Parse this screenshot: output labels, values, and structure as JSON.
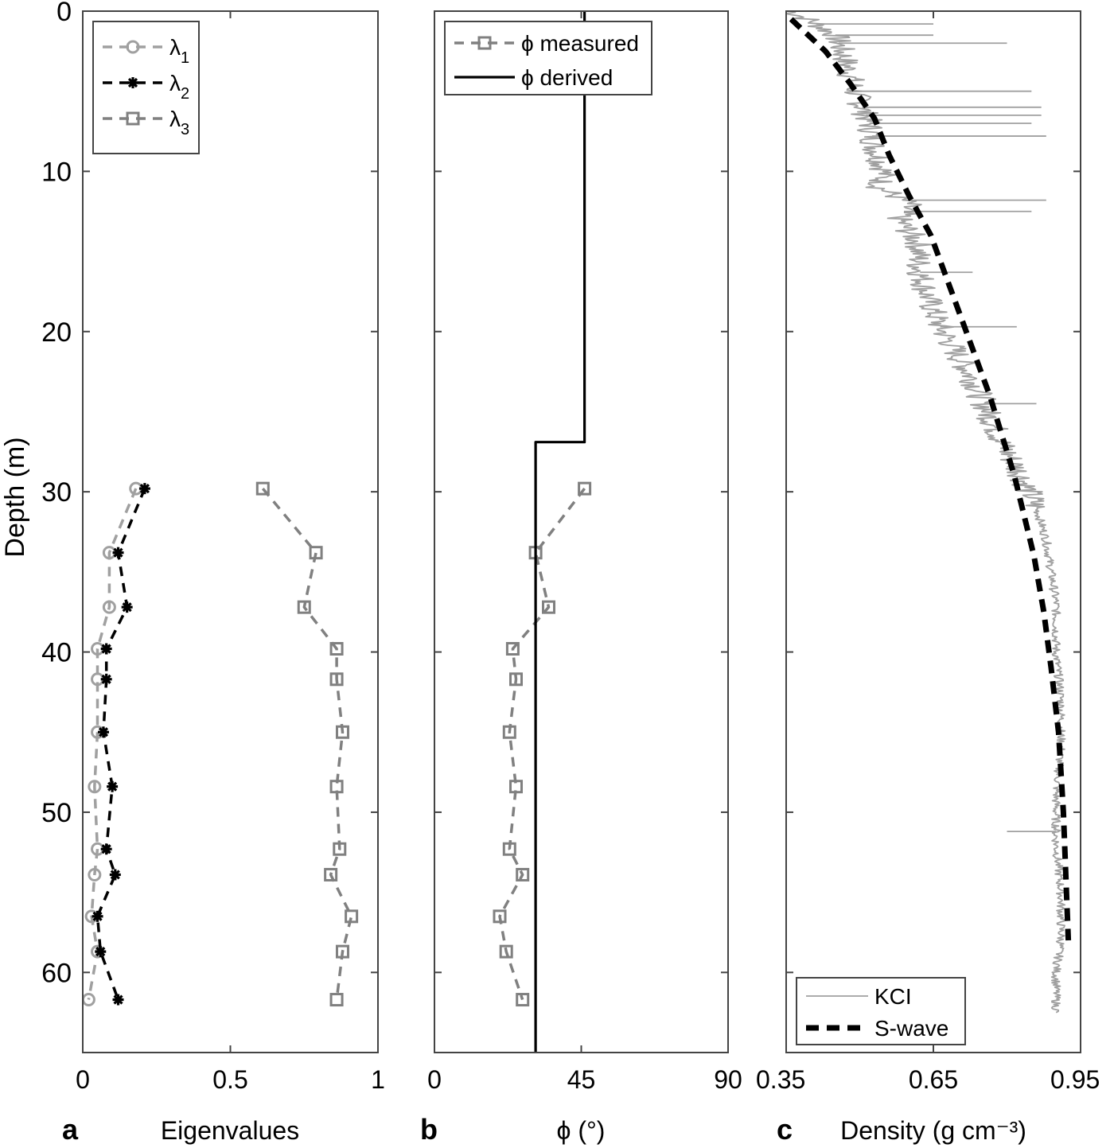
{
  "figure": {
    "ylabel": "Depth (m)",
    "yticks": [
      0,
      10,
      20,
      30,
      40,
      50,
      60
    ]
  },
  "chart_data": [
    {
      "panel": "a",
      "type": "line",
      "xlabel": "Eigenvalues",
      "ylabel": "Depth (m)",
      "xlim": [
        0,
        1
      ],
      "ylim": [
        0,
        65
      ],
      "y_reversed": true,
      "xticks": [
        "0",
        "0.5",
        "1"
      ],
      "grid": false,
      "legend_position": "top-left",
      "series": [
        {
          "name": "λ",
          "sub": "1",
          "color": "#a0a0a0",
          "marker": "circle",
          "dash": "dashed",
          "points": [
            [
              0.18,
              29.8
            ],
            [
              0.09,
              33.8
            ],
            [
              0.09,
              37.2
            ],
            [
              0.05,
              39.8
            ],
            [
              0.05,
              41.7
            ],
            [
              0.05,
              45.0
            ],
            [
              0.04,
              48.4
            ],
            [
              0.05,
              52.3
            ],
            [
              0.04,
              53.9
            ],
            [
              0.03,
              56.5
            ],
            [
              0.05,
              58.7
            ],
            [
              0.02,
              61.7
            ]
          ]
        },
        {
          "name": "λ",
          "sub": "2",
          "color": "#000000",
          "marker": "star",
          "dash": "dashed",
          "points": [
            [
              0.21,
              29.8
            ],
            [
              0.12,
              33.8
            ],
            [
              0.15,
              37.2
            ],
            [
              0.08,
              39.8
            ],
            [
              0.08,
              41.7
            ],
            [
              0.07,
              45.0
            ],
            [
              0.1,
              48.4
            ],
            [
              0.08,
              52.3
            ],
            [
              0.11,
              53.9
            ],
            [
              0.05,
              56.5
            ],
            [
              0.06,
              58.7
            ],
            [
              0.12,
              61.7
            ]
          ]
        },
        {
          "name": "λ",
          "sub": "3",
          "color": "#808080",
          "marker": "square",
          "dash": "dashed",
          "points": [
            [
              0.61,
              29.8
            ],
            [
              0.79,
              33.8
            ],
            [
              0.75,
              37.2
            ],
            [
              0.86,
              39.8
            ],
            [
              0.86,
              41.7
            ],
            [
              0.88,
              45.0
            ],
            [
              0.86,
              48.4
            ],
            [
              0.87,
              52.3
            ],
            [
              0.84,
              53.9
            ],
            [
              0.91,
              56.5
            ],
            [
              0.88,
              58.7
            ],
            [
              0.86,
              61.7
            ]
          ]
        }
      ]
    },
    {
      "panel": "b",
      "type": "line",
      "xlabel": "ϕ (°)",
      "ylabel": "Depth (m)",
      "xlim": [
        0,
        90
      ],
      "ylim": [
        0,
        65
      ],
      "y_reversed": true,
      "xticks": [
        "0",
        "45",
        "90"
      ],
      "grid": false,
      "legend_position": "top-left",
      "series": [
        {
          "name": "ϕ measured",
          "color": "#808080",
          "marker": "square",
          "dash": "dashed",
          "points": [
            [
              46,
              29.8
            ],
            [
              31,
              33.8
            ],
            [
              35,
              37.2
            ],
            [
              24,
              39.8
            ],
            [
              25,
              41.7
            ],
            [
              23,
              45.0
            ],
            [
              25,
              48.4
            ],
            [
              23,
              52.3
            ],
            [
              27,
              53.9
            ],
            [
              20,
              56.5
            ],
            [
              22,
              58.7
            ],
            [
              27,
              61.7
            ]
          ]
        },
        {
          "name": "ϕ derived",
          "color": "#000000",
          "marker": "none",
          "dash": "solid",
          "points": [
            [
              46,
              0
            ],
            [
              46,
              26.9
            ],
            [
              31,
              26.9
            ],
            [
              31,
              65
            ]
          ]
        }
      ]
    },
    {
      "panel": "c",
      "type": "line",
      "xlabel": "Density (g cm⁻³)",
      "ylabel": "Depth (m)",
      "xlim": [
        0.35,
        0.95
      ],
      "ylim": [
        0,
        65
      ],
      "y_reversed": true,
      "xticks": [
        "0.35",
        "0.65",
        "0.95"
      ],
      "grid": false,
      "legend_position": "bottom-left",
      "series": [
        {
          "name": "KCI",
          "color": "#a0a0a0",
          "marker": "none",
          "dash": "solid",
          "noise": 0.018,
          "points": [
            [
              0.36,
              0.0
            ],
            [
              0.4,
              0.6
            ],
            [
              0.45,
              1.5
            ],
            [
              0.47,
              3.0
            ],
            [
              0.49,
              5.0
            ],
            [
              0.52,
              7.0
            ],
            [
              0.53,
              8.5
            ],
            [
              0.55,
              10.0
            ],
            [
              0.54,
              11.0
            ],
            [
              0.6,
              12.0
            ],
            [
              0.58,
              13.0
            ],
            [
              0.62,
              14.5
            ],
            [
              0.62,
              16.0
            ],
            [
              0.64,
              18.0
            ],
            [
              0.66,
              19.5
            ],
            [
              0.69,
              21.0
            ],
            [
              0.73,
              23.0
            ],
            [
              0.76,
              25.0
            ],
            [
              0.79,
              27.0
            ],
            [
              0.83,
              29.0
            ],
            [
              0.86,
              31.0
            ],
            [
              0.88,
              33.0
            ],
            [
              0.89,
              35.0
            ],
            [
              0.9,
              37.0
            ],
            [
              0.9,
              40.0
            ],
            [
              0.91,
              43.0
            ],
            [
              0.91,
              46.0
            ],
            [
              0.9,
              49.0
            ],
            [
              0.9,
              52.0
            ],
            [
              0.91,
              55.0
            ],
            [
              0.91,
              58.0
            ],
            [
              0.9,
              60.0
            ],
            [
              0.9,
              62.5
            ]
          ],
          "spikes": [
            [
              0.65,
              0.8
            ],
            [
              0.65,
              1.5
            ],
            [
              0.8,
              2.0
            ],
            [
              0.85,
              5.0
            ],
            [
              0.87,
              6.0
            ],
            [
              0.87,
              6.5
            ],
            [
              0.85,
              7.0
            ],
            [
              0.88,
              7.8
            ],
            [
              0.88,
              11.8
            ],
            [
              0.85,
              12.5
            ],
            [
              0.73,
              16.3
            ],
            [
              0.82,
              19.7
            ],
            [
              0.86,
              24.5
            ],
            [
              0.8,
              51.2
            ]
          ]
        },
        {
          "name": "S-wave",
          "color": "#000000",
          "marker": "none",
          "dash": "dashed-thick",
          "points": [
            [
              0.36,
              0.5
            ],
            [
              0.43,
              2.5
            ],
            [
              0.48,
              4.5
            ],
            [
              0.53,
              6.7
            ],
            [
              0.56,
              9.0
            ],
            [
              0.6,
              11.5
            ],
            [
              0.645,
              14.0
            ],
            [
              0.675,
              16.5
            ],
            [
              0.705,
              19.0
            ],
            [
              0.735,
              21.5
            ],
            [
              0.765,
              24.0
            ],
            [
              0.79,
              26.5
            ],
            [
              0.815,
              29.0
            ],
            [
              0.835,
              31.5
            ],
            [
              0.855,
              34.0
            ],
            [
              0.875,
              37.5
            ],
            [
              0.89,
              41.0
            ],
            [
              0.905,
              45.0
            ],
            [
              0.915,
              50.0
            ],
            [
              0.92,
              54.0
            ],
            [
              0.925,
              58.0
            ]
          ]
        }
      ]
    }
  ]
}
